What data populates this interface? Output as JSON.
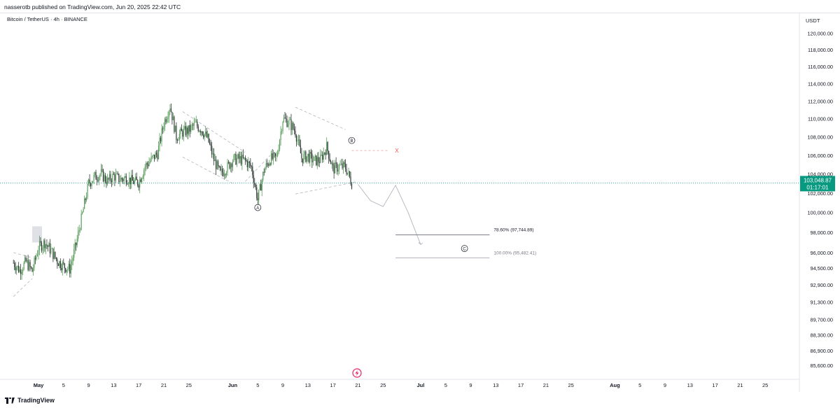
{
  "header": {
    "published": "nasserotb published on TradingView.com, Jun 20, 2025 22:42 UTC"
  },
  "chart_data": {
    "type": "candlestick",
    "symbol_title": "Bitcoin / TetherUS · 4h · BINANCE",
    "currency": "USDT",
    "y_ticks": [
      "120,000.00",
      "118,000.00",
      "116,000.00",
      "114,000.00",
      "112,000.00",
      "110,000.00",
      "108,000.00",
      "106,000.00",
      "104,000.00",
      "102,000.00",
      "100,000.00",
      "98,000.00",
      "96,000.00",
      "94,500.00",
      "92,900.00",
      "91,300.00",
      "89,700.00",
      "88,300.00",
      "86,900.00",
      "85,600.00"
    ],
    "y_tick_values": [
      120000,
      118000,
      116000,
      114000,
      112000,
      110000,
      108000,
      106000,
      104000,
      102000,
      100000,
      98000,
      96000,
      94500,
      92900,
      91300,
      89700,
      88300,
      86900,
      85600
    ],
    "scale": "log",
    "x_ticks": [
      {
        "label": "May",
        "bold": true,
        "date": "2025-05-01"
      },
      {
        "label": "5",
        "date": "2025-05-05"
      },
      {
        "label": "9",
        "date": "2025-05-09"
      },
      {
        "label": "13",
        "date": "2025-05-13"
      },
      {
        "label": "17",
        "date": "2025-05-17"
      },
      {
        "label": "21",
        "date": "2025-05-21"
      },
      {
        "label": "25",
        "date": "2025-05-25"
      },
      {
        "label": "Jun",
        "bold": true,
        "date": "2025-06-01"
      },
      {
        "label": "5",
        "date": "2025-06-05"
      },
      {
        "label": "9",
        "date": "2025-06-09"
      },
      {
        "label": "13",
        "date": "2025-06-13"
      },
      {
        "label": "17",
        "date": "2025-06-17"
      },
      {
        "label": "21",
        "date": "2025-06-21"
      },
      {
        "label": "25",
        "date": "2025-06-25"
      },
      {
        "label": "Jul",
        "bold": true,
        "date": "2025-07-01"
      },
      {
        "label": "5",
        "date": "2025-07-05"
      },
      {
        "label": "9",
        "date": "2025-07-09"
      },
      {
        "label": "13",
        "date": "2025-07-13"
      },
      {
        "label": "17",
        "date": "2025-07-17"
      },
      {
        "label": "21",
        "date": "2025-07-21"
      },
      {
        "label": "25",
        "date": "2025-07-25"
      },
      {
        "label": "Aug",
        "bold": true,
        "date": "2025-08-01"
      },
      {
        "label": "5",
        "date": "2025-08-05"
      },
      {
        "label": "9",
        "date": "2025-08-09"
      },
      {
        "label": "13",
        "date": "2025-08-13"
      },
      {
        "label": "17",
        "date": "2025-08-17"
      },
      {
        "label": "21",
        "date": "2025-08-21"
      },
      {
        "label": "25",
        "date": "2025-08-25"
      }
    ],
    "price_path": [
      [
        "2025-04-27",
        95000
      ],
      [
        "2025-04-28",
        94300
      ],
      [
        "2025-04-29",
        95100
      ],
      [
        "2025-04-30",
        94200
      ],
      [
        "2025-05-01",
        96500
      ],
      [
        "2025-05-02",
        97000
      ],
      [
        "2025-05-03",
        96200
      ],
      [
        "2025-05-04",
        95200
      ],
      [
        "2025-05-05",
        94700
      ],
      [
        "2025-05-06",
        94400
      ],
      [
        "2025-05-07",
        96800
      ],
      [
        "2025-05-08",
        99800
      ],
      [
        "2025-05-09",
        103000
      ],
      [
        "2025-05-10",
        103700
      ],
      [
        "2025-05-11",
        104000
      ],
      [
        "2025-05-12",
        103200
      ],
      [
        "2025-05-13",
        103800
      ],
      [
        "2025-05-14",
        103400
      ],
      [
        "2025-05-15",
        103600
      ],
      [
        "2025-05-16",
        103200
      ],
      [
        "2025-05-17",
        103100
      ],
      [
        "2025-05-18",
        104800
      ],
      [
        "2025-05-19",
        105500
      ],
      [
        "2025-05-20",
        106200
      ],
      [
        "2025-05-21",
        109500
      ],
      [
        "2025-05-22",
        111500
      ],
      [
        "2025-05-23",
        108000
      ],
      [
        "2025-05-24",
        108500
      ],
      [
        "2025-05-25",
        108700
      ],
      [
        "2025-05-26",
        109400
      ],
      [
        "2025-05-27",
        108800
      ],
      [
        "2025-05-28",
        107800
      ],
      [
        "2025-05-29",
        105500
      ],
      [
        "2025-05-30",
        104000
      ],
      [
        "2025-05-31",
        104600
      ],
      [
        "2025-06-01",
        105500
      ],
      [
        "2025-06-02",
        105600
      ],
      [
        "2025-06-03",
        105400
      ],
      [
        "2025-06-04",
        104700
      ],
      [
        "2025-06-05",
        101300
      ],
      [
        "2025-06-06",
        104400
      ],
      [
        "2025-06-07",
        105600
      ],
      [
        "2025-06-08",
        105700
      ],
      [
        "2025-06-09",
        110000
      ],
      [
        "2025-06-10",
        109600
      ],
      [
        "2025-06-11",
        108600
      ],
      [
        "2025-06-12",
        105700
      ],
      [
        "2025-06-13",
        105900
      ],
      [
        "2025-06-14",
        105400
      ],
      [
        "2025-06-15",
        105500
      ],
      [
        "2025-06-16",
        106900
      ],
      [
        "2025-06-17",
        104500
      ],
      [
        "2025-06-18",
        104800
      ],
      [
        "2025-06-19",
        104700
      ],
      [
        "2025-06-20",
        103049
      ]
    ],
    "current_price": {
      "value": "103,048.87",
      "countdown": "01:17:01",
      "price": 103048.87
    },
    "wave_labels": [
      {
        "label": "A",
        "date": "2025-06-05",
        "price": 100500
      },
      {
        "label": "B",
        "date": "2025-06-20",
        "price": 107600
      },
      {
        "label": "C",
        "date": "2025-07-08",
        "price": 96400
      }
    ],
    "b_level": {
      "price": 106500,
      "marker": "X"
    },
    "fib_levels": [
      {
        "label": "78.60% (97,744.89)",
        "price": 97744.89
      },
      {
        "label": "100.00% (95,482.41)",
        "price": 95482.41
      }
    ],
    "projection_path": [
      [
        "2025-06-21",
        102900
      ],
      [
        "2025-06-23",
        101200
      ],
      [
        "2025-06-25",
        100600
      ],
      [
        "2025-06-27",
        102800
      ],
      [
        "2025-06-29",
        100000
      ],
      [
        "2025-07-01",
        96800
      ]
    ],
    "colors": {
      "up": "#26a69a",
      "down": "#2c3e3a",
      "candle_green": "#4caf50",
      "price_line": "#089981",
      "fib1": "#787b86",
      "fib2": "#b2b5be"
    }
  },
  "footer": {
    "brand": "TradingView"
  }
}
